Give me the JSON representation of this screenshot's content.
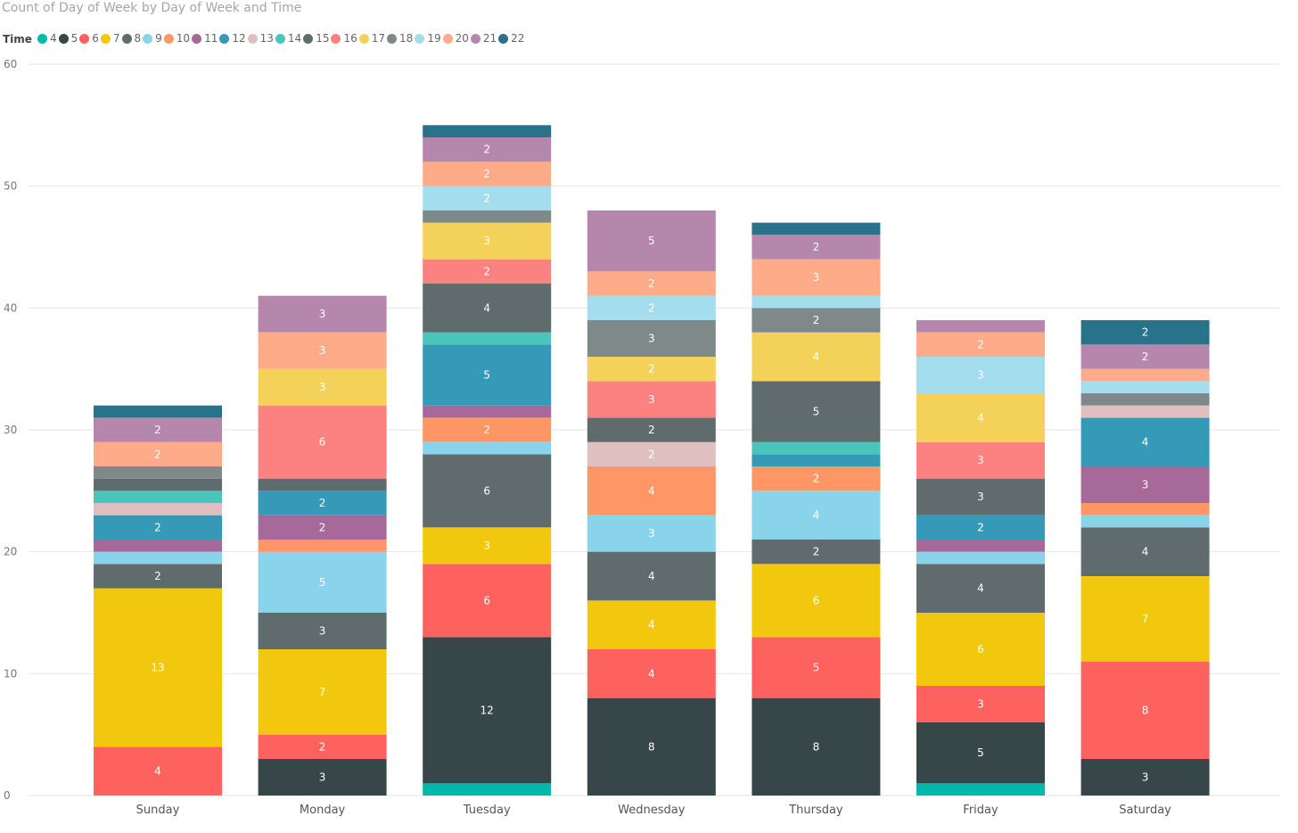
{
  "chart_data": {
    "type": "bar",
    "stacked": true,
    "title": "Count of Day of Week by Day of Week and Time",
    "legend_title": "Time",
    "legend_position": "top-left",
    "categories": [
      "Sunday",
      "Monday",
      "Tuesday",
      "Wednesday",
      "Thursday",
      "Friday",
      "Saturday"
    ],
    "ylim": [
      0,
      60
    ],
    "yticks": [
      0,
      10,
      20,
      30,
      40,
      50,
      60
    ],
    "grid": true,
    "series": [
      {
        "name": "4",
        "color": "#01b8aa",
        "values": [
          0,
          0,
          1,
          0,
          0,
          1,
          0
        ]
      },
      {
        "name": "5",
        "color": "#374649",
        "values": [
          0,
          3,
          12,
          8,
          8,
          5,
          3
        ]
      },
      {
        "name": "6",
        "color": "#fd625e",
        "values": [
          4,
          2,
          6,
          4,
          5,
          3,
          8
        ]
      },
      {
        "name": "7",
        "color": "#f2c80f",
        "values": [
          13,
          7,
          3,
          4,
          6,
          6,
          7
        ]
      },
      {
        "name": "8",
        "color": "#5f6b6d",
        "values": [
          2,
          3,
          6,
          4,
          2,
          4,
          4
        ]
      },
      {
        "name": "9",
        "color": "#8ad4eb",
        "values": [
          1,
          5,
          1,
          3,
          4,
          1,
          1
        ]
      },
      {
        "name": "10",
        "color": "#fe9666",
        "values": [
          0,
          1,
          2,
          4,
          2,
          0,
          1
        ]
      },
      {
        "name": "11",
        "color": "#a66999",
        "values": [
          1,
          2,
          1,
          0,
          0,
          1,
          3
        ]
      },
      {
        "name": "12",
        "color": "#3599b8",
        "values": [
          2,
          2,
          5,
          0,
          1,
          2,
          4
        ]
      },
      {
        "name": "13",
        "color": "#dfbfbf",
        "values": [
          1,
          0,
          0,
          2,
          0,
          0,
          1
        ]
      },
      {
        "name": "14",
        "color": "#4ac5bb",
        "values": [
          1,
          0,
          1,
          0,
          1,
          0,
          0
        ]
      },
      {
        "name": "15",
        "color": "#5f6b6d",
        "values": [
          1,
          1,
          4,
          2,
          5,
          3,
          0
        ]
      },
      {
        "name": "16",
        "color": "#fb8281",
        "values": [
          0,
          6,
          2,
          3,
          0,
          3,
          0
        ]
      },
      {
        "name": "17",
        "color": "#f4d25a",
        "values": [
          0,
          3,
          3,
          2,
          4,
          4,
          0
        ]
      },
      {
        "name": "18",
        "color": "#7f898a",
        "values": [
          1,
          0,
          1,
          3,
          2,
          0,
          1
        ]
      },
      {
        "name": "19",
        "color": "#a4ddee",
        "values": [
          0,
          0,
          2,
          2,
          1,
          3,
          1
        ]
      },
      {
        "name": "20",
        "color": "#fdab89",
        "values": [
          2,
          3,
          2,
          2,
          3,
          2,
          1
        ]
      },
      {
        "name": "21",
        "color": "#b687ac",
        "values": [
          2,
          3,
          2,
          5,
          2,
          1,
          2
        ]
      },
      {
        "name": "22",
        "color": "#28738a",
        "values": [
          1,
          0,
          1,
          0,
          1,
          0,
          2
        ]
      }
    ]
  }
}
